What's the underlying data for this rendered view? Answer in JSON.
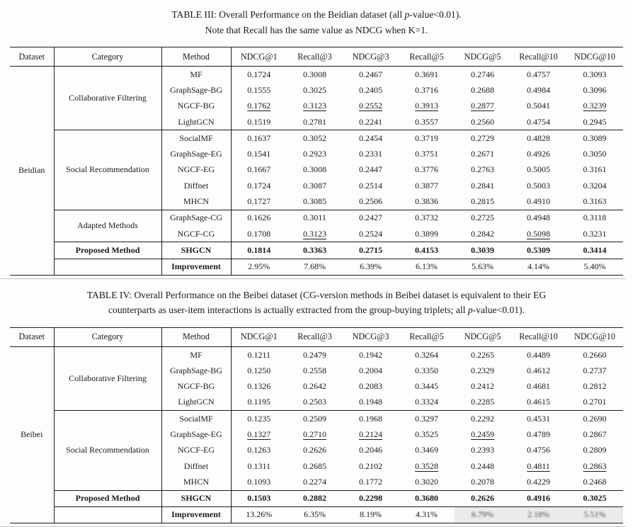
{
  "colors": {
    "text": "#1a1a1a",
    "rule": "#1c1c1c",
    "background": "#fdfdfd"
  },
  "tables": [
    {
      "name": "table-iii",
      "caption_lines": [
        [
          {
            "t": "TABLE III: Overall Performance on the Beidian dataset (all "
          },
          {
            "t": "p",
            "i": 1
          },
          {
            "t": "-value<0.01)."
          }
        ],
        [
          {
            "t": "Note that Recall has the same value as NDCG when K=1."
          }
        ]
      ],
      "headers": [
        "Dataset",
        "Category",
        "Method",
        "NDCG@1",
        "Recall@3",
        "NDCG@3",
        "Recall@5",
        "NDCG@5",
        "Recall@10",
        "NDCG@10"
      ],
      "dataset": "Beidian",
      "groups": [
        {
          "category": "Collaborative Filtering",
          "rows": [
            {
              "method": "MF",
              "values": [
                "0.1724",
                "0.3008",
                "0.2467",
                "0.3691",
                "0.2746",
                "0.4757",
                "0.3093"
              ]
            },
            {
              "method": "GraphSage-BG",
              "values": [
                "0.1555",
                "0.3025",
                "0.2405",
                "0.3716",
                "0.2688",
                "0.4984",
                "0.3096"
              ]
            },
            {
              "method": "NGCF-BG",
              "values": [
                "0.1762",
                "0.3123",
                "0.2552",
                "0.3913",
                "0.2877",
                "0.5041",
                "0.3239"
              ],
              "underline": [
                0,
                1,
                2,
                3,
                4,
                6
              ]
            },
            {
              "method": "LightGCN",
              "values": [
                "0.1519",
                "0.2781",
                "0.2241",
                "0.3557",
                "0.2560",
                "0.4754",
                "0.2945"
              ]
            }
          ]
        },
        {
          "category": "Social Recommendation",
          "rows": [
            {
              "method": "SocialMF",
              "values": [
                "0.1637",
                "0.3052",
                "0.2454",
                "0.3719",
                "0.2729",
                "0.4828",
                "0.3089"
              ]
            },
            {
              "method": "GraphSage-EG",
              "values": [
                "0.1541",
                "0.2923",
                "0.2331",
                "0.3751",
                "0.2671",
                "0.4926",
                "0.3050"
              ]
            },
            {
              "method": "NGCF-EG",
              "values": [
                "0.1667",
                "0.3008",
                "0.2447",
                "0.3776",
                "0.2763",
                "0.5005",
                "0.3161"
              ]
            },
            {
              "method": "Diffnet",
              "values": [
                "0.1724",
                "0.3087",
                "0.2514",
                "0.3877",
                "0.2841",
                "0.5003",
                "0.3204"
              ]
            },
            {
              "method": "MHCN",
              "values": [
                "0.1727",
                "0.3085",
                "0.2506",
                "0.3836",
                "0.2815",
                "0.4910",
                "0.3163"
              ]
            }
          ]
        },
        {
          "category": "Adapted Methods",
          "rows": [
            {
              "method": "GraphSage-CG",
              "values": [
                "0.1626",
                "0.3011",
                "0.2427",
                "0.3732",
                "0.2725",
                "0.4948",
                "0.3118"
              ]
            },
            {
              "method": "NGCF-CG",
              "values": [
                "0.1708",
                "0.3123",
                "0.2524",
                "0.3899",
                "0.2842",
                "0.5098",
                "0.3231"
              ],
              "underline": [
                1,
                5
              ]
            }
          ]
        },
        {
          "category": "Proposed Method",
          "category_bold": true,
          "rows": [
            {
              "method": "SHGCN",
              "bold": true,
              "values": [
                "0.1814",
                "0.3363",
                "0.2715",
                "0.4153",
                "0.3039",
                "0.5309",
                "0.3414"
              ]
            }
          ]
        },
        {
          "category": "",
          "rows": [
            {
              "method": "Improvement",
              "method_bold": true,
              "values": [
                "2.95%",
                "7.68%",
                "6.39%",
                "6.13%",
                "5.63%",
                "4.14%",
                "5.40%"
              ]
            }
          ]
        }
      ]
    },
    {
      "name": "table-iv",
      "caption_lines": [
        [
          {
            "t": "TABLE IV: Overall Performance on the Beibei dataset (CG-version methods in Beibei dataset is equivalent to their EG"
          }
        ],
        [
          {
            "t": "counterparts as user-item interactions is actually extracted from the group-buying triplets; all "
          },
          {
            "t": "p",
            "i": 1
          },
          {
            "t": "-value<0.01)."
          }
        ]
      ],
      "headers": [
        "Dataset",
        "Category",
        "Method",
        "NDCG@1",
        "Recall@3",
        "NDCG@3",
        "Recall@5",
        "NDCG@5",
        "Recall@10",
        "NDCG@10"
      ],
      "dataset": "Beibei",
      "groups": [
        {
          "category": "Collaborative Filtering",
          "rows": [
            {
              "method": "MF",
              "values": [
                "0.1211",
                "0.2479",
                "0.1942",
                "0.3264",
                "0.2265",
                "0.4489",
                "0.2660"
              ]
            },
            {
              "method": "GraphSage-BG",
              "values": [
                "0.1250",
                "0.2558",
                "0.2004",
                "0.3350",
                "0.2329",
                "0.4612",
                "0.2737"
              ]
            },
            {
              "method": "NGCF-BG",
              "values": [
                "0.1326",
                "0.2642",
                "0.2083",
                "0.3445",
                "0.2412",
                "0.4681",
                "0.2812"
              ]
            },
            {
              "method": "LightGCN",
              "values": [
                "0.1195",
                "0.2503",
                "0.1948",
                "0.3324",
                "0.2285",
                "0.4615",
                "0.2701"
              ]
            }
          ]
        },
        {
          "category": "Social Recommendation",
          "rows": [
            {
              "method": "SocialMF",
              "values": [
                "0.1235",
                "0.2509",
                "0.1968",
                "0.3297",
                "0.2292",
                "0.4531",
                "0.2690"
              ]
            },
            {
              "method": "GraphSage-EG",
              "values": [
                "0.1327",
                "0.2710",
                "0.2124",
                "0.3525",
                "0.2459",
                "0.4789",
                "0.2867"
              ],
              "underline": [
                0,
                1,
                2,
                4
              ]
            },
            {
              "method": "NGCF-EG",
              "values": [
                "0.1263",
                "0.2626",
                "0.2046",
                "0.3469",
                "0.2393",
                "0.4756",
                "0.2809"
              ]
            },
            {
              "method": "Diffnet",
              "values": [
                "0.1311",
                "0.2685",
                "0.2102",
                "0.3528",
                "0.2448",
                "0.4811",
                "0.2863"
              ],
              "underline": [
                3,
                5,
                6
              ]
            },
            {
              "method": "MHCN",
              "values": [
                "0.1093",
                "0.2274",
                "0.1772",
                "0.3020",
                "0.2078",
                "0.4229",
                "0.2468"
              ]
            }
          ]
        },
        {
          "category": "Proposed Method",
          "category_bold": true,
          "rows": [
            {
              "method": "SHGCN",
              "bold": true,
              "values": [
                "0.1503",
                "0.2882",
                "0.2298",
                "0.3680",
                "0.2626",
                "0.4916",
                "0.3025"
              ]
            }
          ]
        },
        {
          "category": "",
          "rows": [
            {
              "method": "Improvement",
              "method_bold": true,
              "values": [
                "13.26%",
                "6.35%",
                "8.19%",
                "4.31%",
                "6.79%",
                "2.18%",
                "5.51%"
              ],
              "degraded": [
                4,
                5,
                6
              ]
            }
          ]
        }
      ]
    }
  ]
}
